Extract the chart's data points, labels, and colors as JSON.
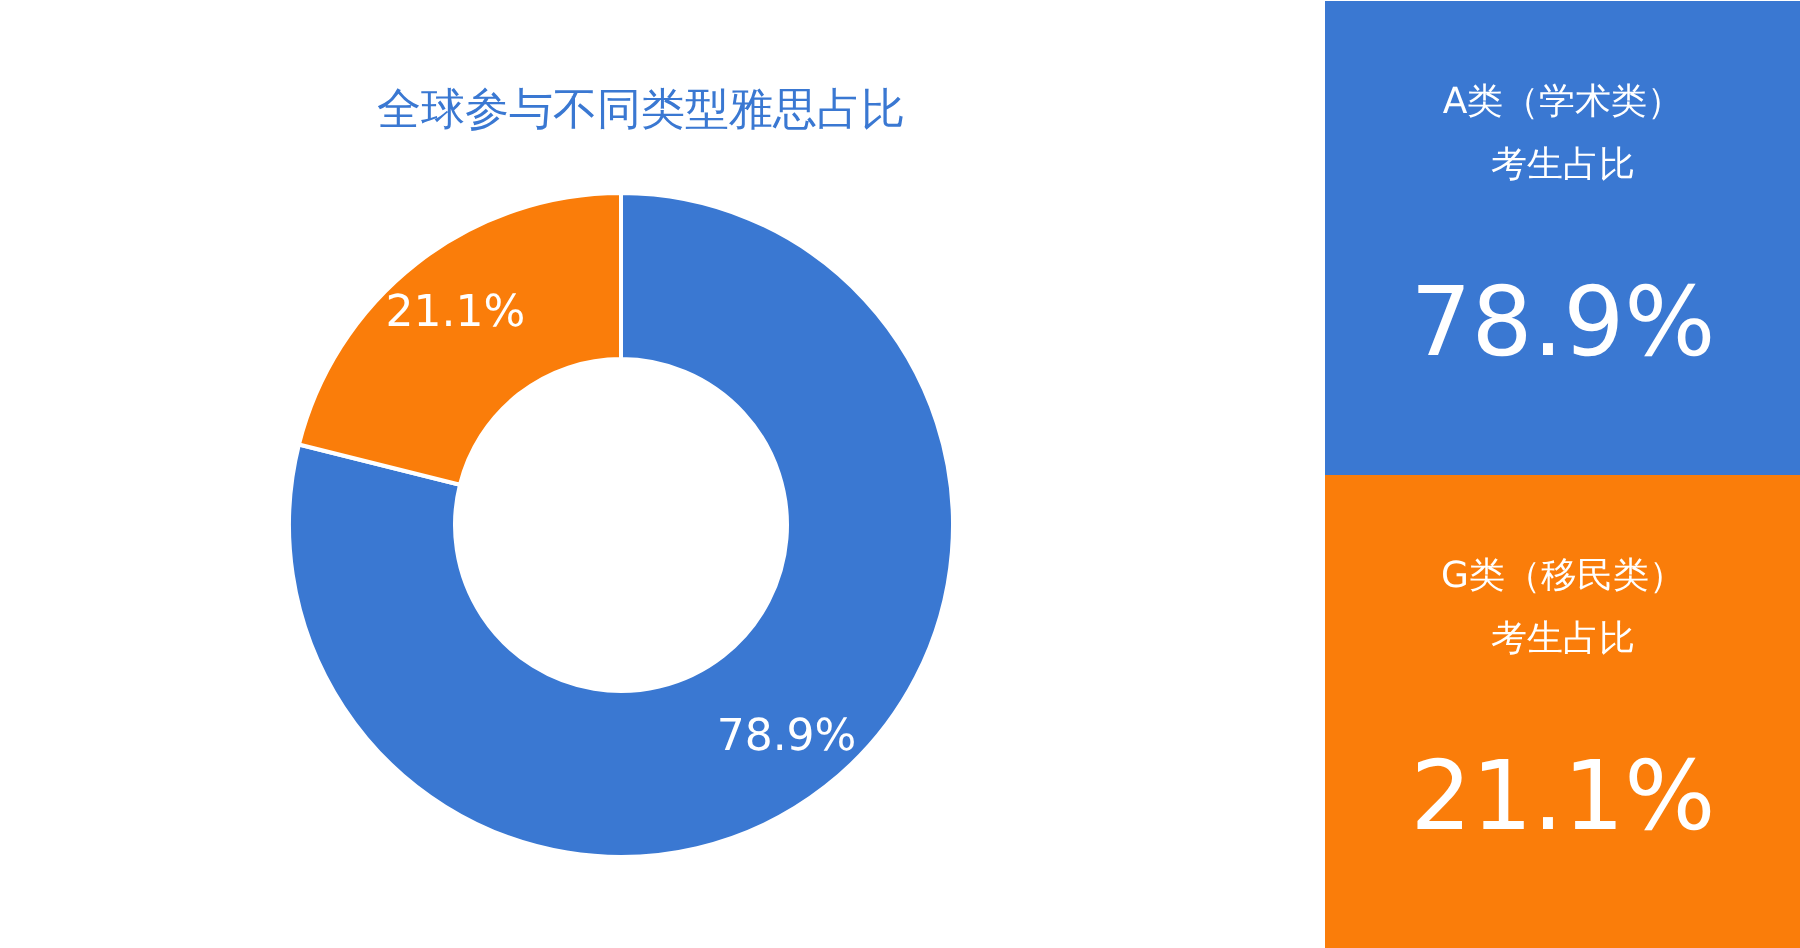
{
  "chart_data": {
    "type": "donut",
    "title": "全球参与不同类型雅思占比",
    "categories": [
      null,
      null
    ],
    "annotations": [
      "A类（学术类）考生占比",
      "G类（移民类）考生占比"
    ],
    "values": [
      78.9,
      21.1
    ],
    "colors": [
      "#3a78d2",
      "#fa7d0a"
    ],
    "value_labels": [
      "78.9%",
      "21.1%"
    ]
  }
}
